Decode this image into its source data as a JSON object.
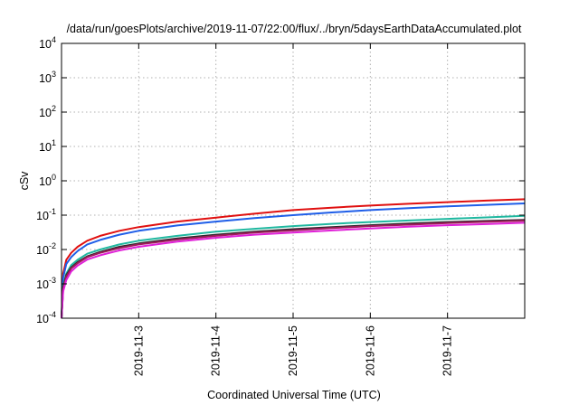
{
  "chart_data": {
    "type": "line",
    "title": "/data/run/goesPlots/archive/2019-11-07/22:00/flux/../bryn/5daysEarthDataAccumulated.plot",
    "xlabel": "Coordinated Universal Time (UTC)",
    "ylabel": "cSv",
    "y_scale": "log",
    "ylim": [
      0.0001,
      10000
    ],
    "xlim": [
      "2019-11-02T00:00",
      "2019-11-08T00:00"
    ],
    "grid": true,
    "legend": "none",
    "y_ticks": [
      {
        "value": 0.0001,
        "base": "10",
        "exp": "-4"
      },
      {
        "value": 0.001,
        "base": "10",
        "exp": "-3"
      },
      {
        "value": 0.01,
        "base": "10",
        "exp": "-2"
      },
      {
        "value": 0.1,
        "base": "10",
        "exp": "-1"
      },
      {
        "value": 1,
        "base": "10",
        "exp": "0"
      },
      {
        "value": 10,
        "base": "10",
        "exp": "1"
      },
      {
        "value": 100,
        "base": "10",
        "exp": "2"
      },
      {
        "value": 1000,
        "base": "10",
        "exp": "3"
      },
      {
        "value": 10000,
        "base": "10",
        "exp": "4"
      }
    ],
    "x_ticks": [
      {
        "value": "2019-11-03T00:00",
        "label": "2019-11-3"
      },
      {
        "value": "2019-11-04T00:00",
        "label": "2019-11-4"
      },
      {
        "value": "2019-11-05T00:00",
        "label": "2019-11-5"
      },
      {
        "value": "2019-11-06T00:00",
        "label": "2019-11-6"
      },
      {
        "value": "2019-11-07T00:00",
        "label": "2019-11-7"
      }
    ],
    "series": [
      {
        "color": "#e01010",
        "x": [
          "2019-11-02T00:00",
          "2019-11-02T00:30",
          "2019-11-02T01:30",
          "2019-11-02T03:00",
          "2019-11-02T05:00",
          "2019-11-02T08:00",
          "2019-11-02T12:00",
          "2019-11-02T18:00",
          "2019-11-03T00:00",
          "2019-11-03T12:00",
          "2019-11-04T00:00",
          "2019-11-04T12:00",
          "2019-11-05T00:00",
          "2019-11-05T12:00",
          "2019-11-06T00:00",
          "2019-11-06T12:00",
          "2019-11-07T00:00",
          "2019-11-07T12:00",
          "2019-11-08T00:00"
        ],
        "y": [
          0.0001,
          0.002,
          0.005,
          0.008,
          0.012,
          0.018,
          0.025,
          0.035,
          0.045,
          0.065,
          0.085,
          0.11,
          0.14,
          0.165,
          0.19,
          0.215,
          0.24,
          0.265,
          0.29
        ]
      },
      {
        "color": "#1f5ee8",
        "x": [
          "2019-11-02T00:00",
          "2019-11-02T00:30",
          "2019-11-02T01:30",
          "2019-11-02T03:00",
          "2019-11-02T05:00",
          "2019-11-02T08:00",
          "2019-11-02T12:00",
          "2019-11-02T18:00",
          "2019-11-03T00:00",
          "2019-11-03T12:00",
          "2019-11-04T00:00",
          "2019-11-04T12:00",
          "2019-11-05T00:00",
          "2019-11-05T12:00",
          "2019-11-06T00:00",
          "2019-11-06T12:00",
          "2019-11-07T00:00",
          "2019-11-07T12:00",
          "2019-11-08T00:00"
        ],
        "y": [
          0.0001,
          0.0015,
          0.0038,
          0.006,
          0.009,
          0.014,
          0.019,
          0.027,
          0.035,
          0.05,
          0.065,
          0.082,
          0.1,
          0.12,
          0.14,
          0.16,
          0.18,
          0.2,
          0.22
        ]
      },
      {
        "color": "#20b8a0",
        "x": [
          "2019-11-02T00:00",
          "2019-11-02T00:30",
          "2019-11-02T01:30",
          "2019-11-02T03:00",
          "2019-11-02T05:00",
          "2019-11-02T08:00",
          "2019-11-02T12:00",
          "2019-11-02T18:00",
          "2019-11-03T00:00",
          "2019-11-03T12:00",
          "2019-11-04T00:00",
          "2019-11-04T12:00",
          "2019-11-05T00:00",
          "2019-11-05T12:00",
          "2019-11-06T00:00",
          "2019-11-06T12:00",
          "2019-11-07T00:00",
          "2019-11-07T12:00",
          "2019-11-08T00:00"
        ],
        "y": [
          0.0001,
          0.0009,
          0.002,
          0.0035,
          0.005,
          0.0075,
          0.01,
          0.014,
          0.018,
          0.025,
          0.033,
          0.04,
          0.048,
          0.056,
          0.063,
          0.07,
          0.078,
          0.086,
          0.095
        ]
      },
      {
        "color": "#2c2c2c",
        "x": [
          "2019-11-02T00:00",
          "2019-11-02T00:30",
          "2019-11-02T01:30",
          "2019-11-02T03:00",
          "2019-11-02T05:00",
          "2019-11-02T08:00",
          "2019-11-02T12:00",
          "2019-11-02T18:00",
          "2019-11-03T00:00",
          "2019-11-03T12:00",
          "2019-11-04T00:00",
          "2019-11-04T12:00",
          "2019-11-05T00:00",
          "2019-11-05T12:00",
          "2019-11-06T00:00",
          "2019-11-06T12:00",
          "2019-11-07T00:00",
          "2019-11-07T12:00",
          "2019-11-08T00:00"
        ],
        "y": [
          0.0001,
          0.0008,
          0.0018,
          0.003,
          0.0043,
          0.0063,
          0.0085,
          0.012,
          0.015,
          0.021,
          0.027,
          0.033,
          0.039,
          0.045,
          0.051,
          0.057,
          0.063,
          0.068,
          0.073
        ]
      },
      {
        "color": "#a01a5a",
        "x": [
          "2019-11-02T00:00",
          "2019-11-02T00:30",
          "2019-11-02T01:30",
          "2019-11-02T03:00",
          "2019-11-02T05:00",
          "2019-11-02T08:00",
          "2019-11-02T12:00",
          "2019-11-02T18:00",
          "2019-11-03T00:00",
          "2019-11-03T12:00",
          "2019-11-04T00:00",
          "2019-11-04T12:00",
          "2019-11-05T00:00",
          "2019-11-05T12:00",
          "2019-11-06T00:00",
          "2019-11-06T12:00",
          "2019-11-07T00:00",
          "2019-11-07T12:00",
          "2019-11-08T00:00"
        ],
        "y": [
          0.0001,
          0.0007,
          0.0016,
          0.0028,
          0.004,
          0.006,
          0.008,
          0.011,
          0.014,
          0.0195,
          0.025,
          0.031,
          0.036,
          0.042,
          0.048,
          0.053,
          0.059,
          0.064,
          0.069
        ]
      },
      {
        "color": "#e020d8",
        "x": [
          "2019-11-02T00:00",
          "2019-11-02T00:30",
          "2019-11-02T01:30",
          "2019-11-02T03:00",
          "2019-11-02T05:00",
          "2019-11-02T08:00",
          "2019-11-02T12:00",
          "2019-11-02T18:00",
          "2019-11-03T00:00",
          "2019-11-03T12:00",
          "2019-11-04T00:00",
          "2019-11-04T12:00",
          "2019-11-05T00:00",
          "2019-11-05T12:00",
          "2019-11-06T00:00",
          "2019-11-06T12:00",
          "2019-11-07T00:00",
          "2019-11-07T12:00",
          "2019-11-08T00:00"
        ],
        "y": [
          0.0001,
          0.0006,
          0.0013,
          0.0023,
          0.0034,
          0.0051,
          0.0068,
          0.0094,
          0.012,
          0.017,
          0.022,
          0.027,
          0.031,
          0.036,
          0.041,
          0.046,
          0.051,
          0.055,
          0.06
        ]
      }
    ]
  }
}
